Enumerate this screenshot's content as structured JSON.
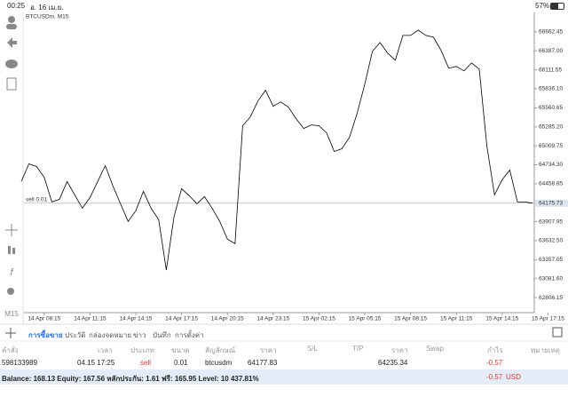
{
  "status_bar": {
    "time": "00:25",
    "date": "อ. 16 เม.ย.",
    "battery": "57%"
  },
  "sidebar": {
    "timeframe": "M15"
  },
  "chart_data": {
    "type": "line",
    "title": "BTCUSDm, M15",
    "color": "#000000",
    "categories": [
      null,
      null,
      null,
      "14 Apr 08:15",
      null,
      null,
      null,
      null,
      null,
      "14 Apr 11:15",
      null,
      null,
      null,
      null,
      null,
      "14 Apr 14:15",
      null,
      null,
      null,
      null,
      null,
      "14 Apr 17:15",
      null,
      null,
      null,
      null,
      null,
      "14 Apr 20:15",
      null,
      null,
      null,
      null,
      null,
      "14 Apr 23:15",
      null,
      null,
      null,
      null,
      null,
      "15 Apr 02:15",
      null,
      null,
      null,
      null,
      null,
      "15 Apr 05:15",
      null,
      null,
      null,
      null,
      null,
      "15 Apr 08:15",
      null,
      null,
      null,
      null,
      null,
      "15 Apr 11:15",
      null,
      null,
      null,
      null,
      null,
      "15 Apr 14:15",
      null,
      null,
      null,
      null,
      null,
      "15 Apr 17:15"
    ],
    "values": [
      64490,
      64747,
      64709,
      64554,
      64194,
      64233,
      64490,
      64297,
      64104,
      64259,
      64490,
      64721,
      64426,
      64169,
      63912,
      64066,
      64349,
      64104,
      63937,
      63205,
      63976,
      64387,
      64284,
      64169,
      64272,
      64104,
      63912,
      63655,
      63590,
      65300,
      65428,
      65660,
      65814,
      65583,
      65647,
      65570,
      65403,
      65262,
      65313,
      65300,
      65197,
      64927,
      64966,
      65133,
      65480,
      65904,
      66380,
      66508,
      66354,
      66251,
      66611,
      66611,
      66688,
      66611,
      66585,
      66393,
      66135,
      66161,
      66097,
      66212,
      66123,
      65004,
      64297,
      64516,
      64657,
      64194,
      64194,
      64176,
      null,
      null
    ],
    "ylim": [
      62588,
      66945
    ],
    "yticks": [
      66662.45,
      {
        "value": 66387,
        "label": "66387.00"
      },
      66111.55,
      {
        "value": 65836.1,
        "label": "65836.10"
      },
      65560.65,
      {
        "value": 65285.2,
        "label": "65285.20"
      },
      65009.75,
      {
        "value": 64734.3,
        "label": "64734.30"
      },
      64458.85,
      63907.95,
      {
        "value": 63632.5,
        "label": "63632.50"
      },
      63357.05,
      {
        "value": 63081.6,
        "label": "63081.60"
      },
      62806.15
    ],
    "current_price": 64175.73,
    "order_label": "sell 0.01",
    "current_color": "#dce6f2"
  },
  "tabs": [
    "การซื้อขาย",
    "ประวัติ",
    "กล่องจดหมาย",
    "ข่าว",
    "บันทึก",
    "การตั้งค่า"
  ],
  "table": {
    "headers": [
      "คำสั่ง",
      "เวลา",
      "ประเภท",
      "ขนาด",
      "สัญลักษณ์",
      "ราคา",
      "S/L",
      "T/P",
      "ราคา",
      "Swap",
      "กำไร",
      "หมายเหตุ"
    ],
    "row": {
      "order": "598133989",
      "time": "04.15 17:25",
      "type": "sell",
      "size": "0.01",
      "symbol": "btcusdm",
      "open_price": "64177.83",
      "price": "64235.34",
      "profit": "-0.57"
    }
  },
  "footer": {
    "summary": "Balance: 168.13 Equity: 167.56 หลักประกัน: 1.61 ฟรี: 165.95 Level: 10 437.81%",
    "profit": "-0.57",
    "currency": "USD"
  }
}
